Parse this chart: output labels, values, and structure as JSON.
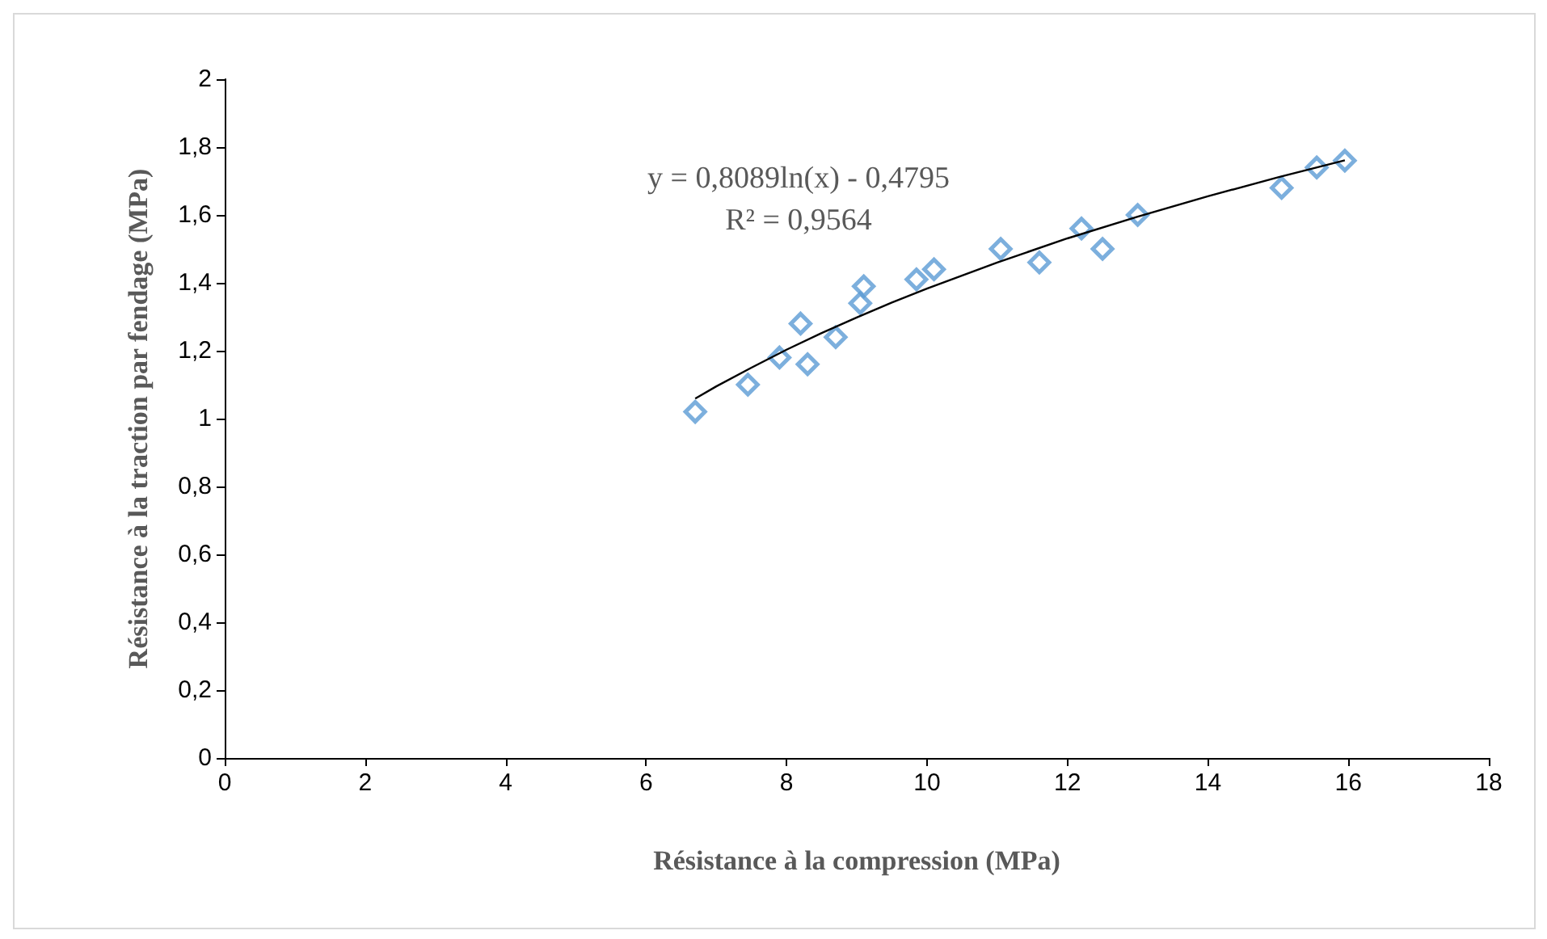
{
  "chart_data": {
    "type": "scatter",
    "xlabel": "Résistance à la compression (MPa)",
    "ylabel": "Résistance à la traction par fendage (MPa)",
    "annotations": [
      "y = 0,8089ln(x) - 0,4795",
      "R² = 0,9564"
    ],
    "xlim": [
      0,
      18
    ],
    "xticks": [
      0,
      2,
      4,
      6,
      8,
      10,
      12,
      14,
      16,
      18
    ],
    "ylim": [
      0,
      2
    ],
    "yticks": [
      0,
      {
        "value": 0.2,
        "label": "0,2"
      },
      {
        "value": 0.4,
        "label": "0,4"
      },
      {
        "value": 0.6,
        "label": "0,6"
      },
      {
        "value": 0.8,
        "label": "0,8"
      },
      1,
      {
        "value": 1.2,
        "label": "1,2"
      },
      {
        "value": 1.4,
        "label": "1,4"
      },
      {
        "value": 1.6,
        "label": "1,6"
      },
      {
        "value": 1.8,
        "label": "1,8"
      },
      2
    ],
    "grid": false,
    "series": [
      {
        "marker": "diamond",
        "color": "#5b9bd5",
        "x": [
          6.7,
          7.45,
          7.9,
          8.2,
          8.3,
          8.7,
          9.05,
          9.1,
          9.85,
          10.1,
          11.05,
          11.6,
          12.2,
          12.5,
          13,
          15.05,
          15.55,
          15.95
        ],
        "values": [
          1.02,
          1.1,
          1.18,
          1.28,
          1.16,
          1.24,
          1.34,
          1.39,
          1.41,
          1.44,
          1.5,
          1.46,
          1.56,
          1.5,
          1.6,
          1.68,
          1.74,
          1.76
        ]
      },
      {
        "type": "line",
        "marker": "none",
        "line_style": "solid",
        "color": "#000000",
        "x": [
          6.7,
          7,
          7.5,
          8,
          8.5,
          9,
          9.5,
          10,
          11,
          12,
          13,
          14,
          15,
          15.95
        ],
        "values": [
          1.059,
          1.095,
          1.15,
          1.203,
          1.252,
          1.298,
          1.342,
          1.383,
          1.46,
          1.531,
          1.595,
          1.655,
          1.711,
          1.761
        ]
      }
    ]
  }
}
